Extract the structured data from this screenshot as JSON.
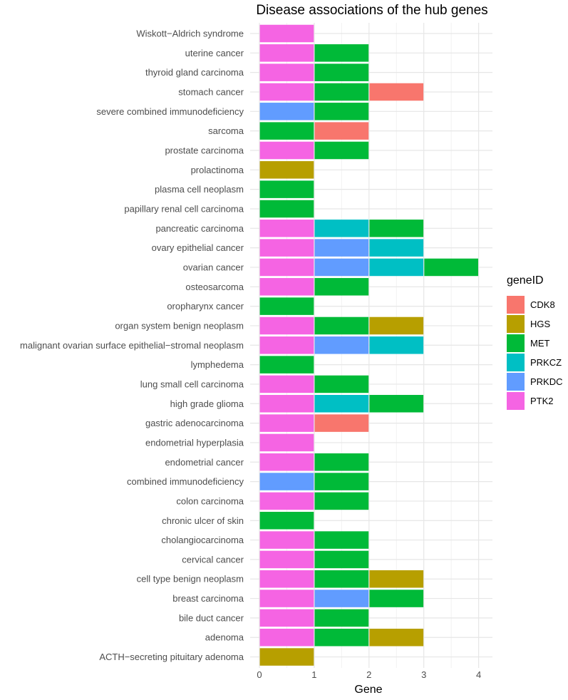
{
  "chart_data": {
    "type": "bar",
    "orientation": "horizontal",
    "stacked": true,
    "title": "Disease associations of the hub genes",
    "xlabel": "Gene",
    "ylabel": "",
    "xlim": [
      0,
      4.2
    ],
    "x_ticks": [
      "0",
      "1",
      "2",
      "3",
      "4"
    ],
    "grid": true,
    "legend": {
      "title": "geneID",
      "position": "right"
    },
    "series_colors": {
      "CDK8": "#F8766D",
      "HGS": "#B79F00",
      "MET": "#00BA38",
      "PRKCZ": "#00BFC4",
      "PRKDC": "#619CFF",
      "PTK2": "#F564E3"
    },
    "legend_entries": [
      "CDK8",
      "HGS",
      "MET",
      "PRKCZ",
      "PRKDC",
      "PTK2"
    ],
    "categories": [
      "Wiskott−Aldrich syndrome",
      "uterine cancer",
      "thyroid gland carcinoma",
      "stomach cancer",
      "severe combined immunodeficiency",
      "sarcoma",
      "prostate carcinoma",
      "prolactinoma",
      "plasma cell neoplasm",
      "papillary renal cell carcinoma",
      "pancreatic carcinoma",
      "ovary epithelial cancer",
      "ovarian cancer",
      "osteosarcoma",
      "oropharynx cancer",
      "organ system benign neoplasm",
      "malignant ovarian surface epithelial−stromal neoplasm",
      "lymphedema",
      "lung small cell carcinoma",
      "high grade glioma",
      "gastric adenocarcinoma",
      "endometrial hyperplasia",
      "endometrial cancer",
      "combined immunodeficiency",
      "colon carcinoma",
      "chronic ulcer of skin",
      "cholangiocarcinoma",
      "cervical cancer",
      "cell type benign neoplasm",
      "breast carcinoma",
      "bile duct cancer",
      "adenoma",
      "ACTH−secreting pituitary adenoma"
    ],
    "stacks": [
      [
        "PTK2"
      ],
      [
        "PTK2",
        "MET"
      ],
      [
        "PTK2",
        "MET"
      ],
      [
        "PTK2",
        "MET",
        "CDK8"
      ],
      [
        "PRKDC",
        "MET"
      ],
      [
        "MET",
        "CDK8"
      ],
      [
        "PTK2",
        "MET"
      ],
      [
        "HGS"
      ],
      [
        "MET"
      ],
      [
        "MET"
      ],
      [
        "PTK2",
        "PRKCZ",
        "MET"
      ],
      [
        "PTK2",
        "PRKDC",
        "PRKCZ"
      ],
      [
        "PTK2",
        "PRKDC",
        "PRKCZ",
        "MET"
      ],
      [
        "PTK2",
        "MET"
      ],
      [
        "MET"
      ],
      [
        "PTK2",
        "MET",
        "HGS"
      ],
      [
        "PTK2",
        "PRKDC",
        "PRKCZ"
      ],
      [
        "MET"
      ],
      [
        "PTK2",
        "MET"
      ],
      [
        "PTK2",
        "PRKCZ",
        "MET"
      ],
      [
        "PTK2",
        "CDK8"
      ],
      [
        "PTK2"
      ],
      [
        "PTK2",
        "MET"
      ],
      [
        "PRKDC",
        "MET"
      ],
      [
        "PTK2",
        "MET"
      ],
      [
        "MET"
      ],
      [
        "PTK2",
        "MET"
      ],
      [
        "PTK2",
        "MET"
      ],
      [
        "PTK2",
        "MET",
        "HGS"
      ],
      [
        "PTK2",
        "PRKDC",
        "MET"
      ],
      [
        "PTK2",
        "MET"
      ],
      [
        "PTK2",
        "MET",
        "HGS"
      ],
      [
        "HGS"
      ]
    ]
  }
}
